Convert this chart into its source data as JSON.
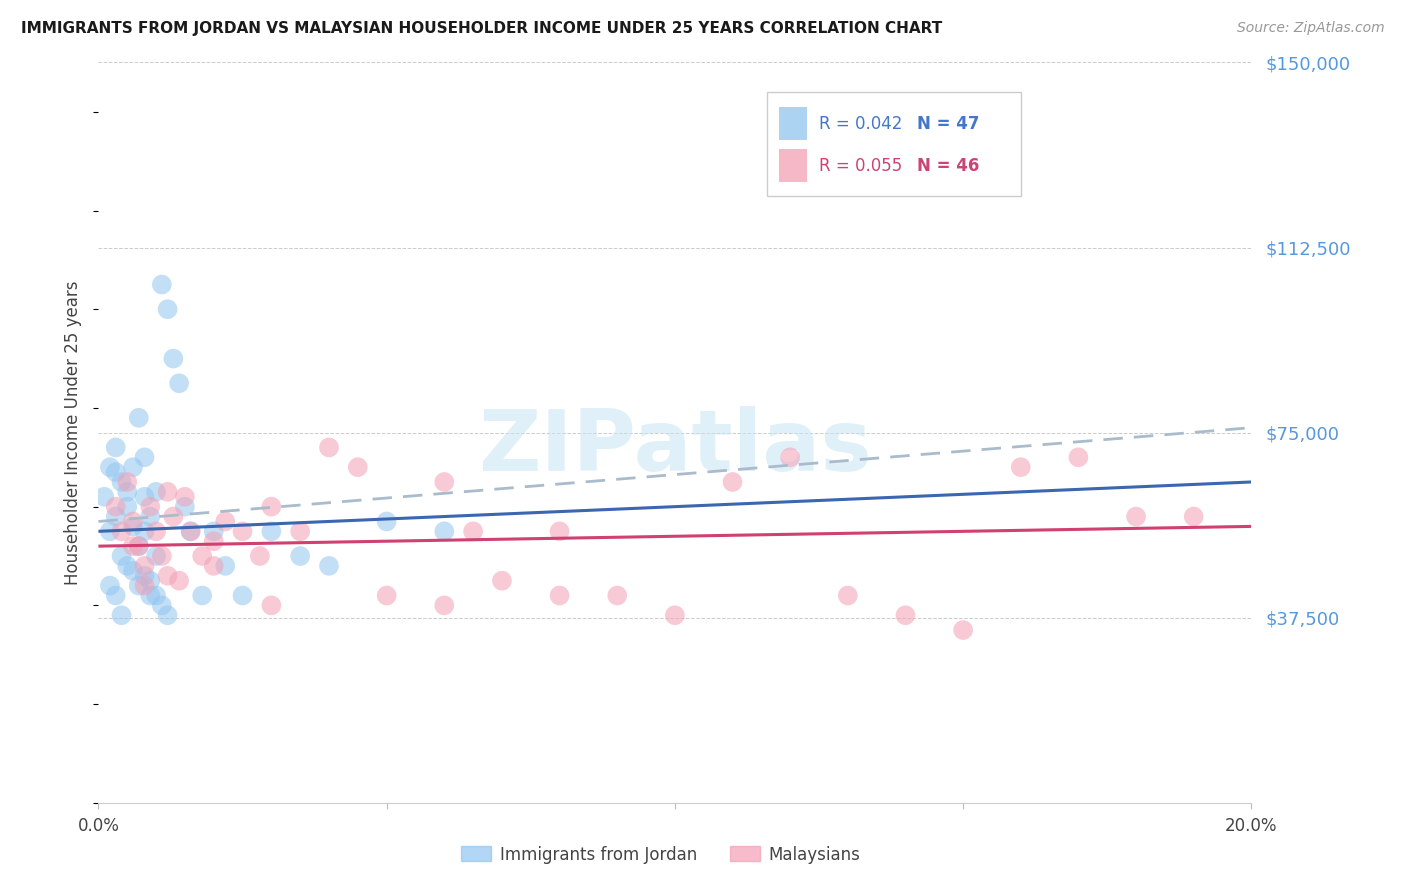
{
  "title": "IMMIGRANTS FROM JORDAN VS MALAYSIAN HOUSEHOLDER INCOME UNDER 25 YEARS CORRELATION CHART",
  "source": "Source: ZipAtlas.com",
  "ylabel": "Householder Income Under 25 years",
  "xlim": [
    0.0,
    0.2
  ],
  "ylim": [
    0,
    150000
  ],
  "yticks": [
    0,
    37500,
    75000,
    112500,
    150000
  ],
  "ytick_labels": [
    "",
    "$37,500",
    "$75,000",
    "$112,500",
    "$150,000"
  ],
  "xticks": [
    0.0,
    0.05,
    0.1,
    0.15,
    0.2
  ],
  "xtick_labels": [
    "0.0%",
    "",
    "",
    "",
    "20.0%"
  ],
  "series1_label": "Immigrants from Jordan",
  "series1_color": "#92C5F0",
  "series2_label": "Malaysians",
  "series2_color": "#F4A0B5",
  "watermark": "ZIPatlas",
  "jordan_x": [
    0.001,
    0.002,
    0.002,
    0.003,
    0.003,
    0.003,
    0.004,
    0.004,
    0.005,
    0.005,
    0.005,
    0.006,
    0.006,
    0.007,
    0.007,
    0.008,
    0.008,
    0.008,
    0.009,
    0.009,
    0.01,
    0.01,
    0.011,
    0.012,
    0.013,
    0.014,
    0.015,
    0.016,
    0.018,
    0.02,
    0.022,
    0.025,
    0.03,
    0.035,
    0.04,
    0.05,
    0.06,
    0.002,
    0.003,
    0.004,
    0.006,
    0.007,
    0.008,
    0.009,
    0.01,
    0.011,
    0.012
  ],
  "jordan_y": [
    62000,
    68000,
    55000,
    72000,
    58000,
    67000,
    65000,
    50000,
    63000,
    48000,
    60000,
    56000,
    68000,
    52000,
    78000,
    62000,
    55000,
    70000,
    58000,
    45000,
    63000,
    50000,
    105000,
    100000,
    90000,
    85000,
    60000,
    55000,
    42000,
    55000,
    48000,
    42000,
    55000,
    50000,
    48000,
    57000,
    55000,
    44000,
    42000,
    38000,
    47000,
    44000,
    46000,
    42000,
    42000,
    40000,
    38000
  ],
  "malay_x": [
    0.003,
    0.004,
    0.005,
    0.006,
    0.007,
    0.008,
    0.009,
    0.01,
    0.011,
    0.012,
    0.013,
    0.014,
    0.015,
    0.016,
    0.018,
    0.02,
    0.022,
    0.025,
    0.028,
    0.03,
    0.035,
    0.04,
    0.045,
    0.05,
    0.06,
    0.065,
    0.07,
    0.08,
    0.09,
    0.1,
    0.11,
    0.12,
    0.13,
    0.14,
    0.15,
    0.16,
    0.17,
    0.18,
    0.19,
    0.006,
    0.008,
    0.012,
    0.02,
    0.03,
    0.06,
    0.08
  ],
  "malay_y": [
    60000,
    55000,
    65000,
    57000,
    52000,
    48000,
    60000,
    55000,
    50000,
    63000,
    58000,
    45000,
    62000,
    55000,
    50000,
    53000,
    57000,
    55000,
    50000,
    60000,
    55000,
    72000,
    68000,
    42000,
    65000,
    55000,
    45000,
    42000,
    42000,
    38000,
    65000,
    70000,
    42000,
    38000,
    35000,
    68000,
    70000,
    58000,
    58000,
    52000,
    44000,
    46000,
    48000,
    40000,
    40000,
    55000
  ],
  "jordan_trend_y0": 55000,
  "jordan_trend_y1": 65000,
  "malay_trend_y0": 52000,
  "malay_trend_y1": 56000,
  "dashed_trend_y0": 57000,
  "dashed_trend_y1": 76000,
  "jordan_line_color": "#3A67B0",
  "malay_line_color": "#D04070",
  "dashed_line_color": "#AABBCC"
}
